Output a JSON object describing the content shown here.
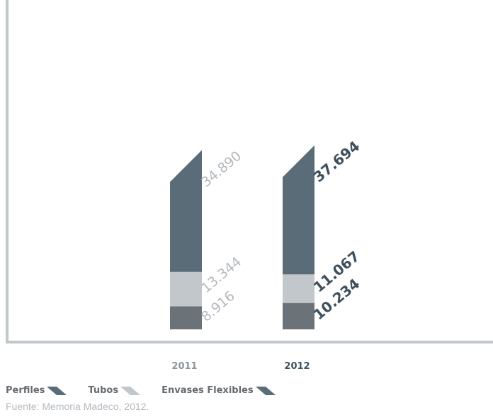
{
  "chart_data": {
    "type": "bar",
    "stacked": true,
    "categories": [
      "2011",
      "2012"
    ],
    "series": [
      {
        "name": "Envases Flexibles",
        "values": [
          8.916,
          10.234
        ],
        "color": "#6b7378"
      },
      {
        "name": "Tubos",
        "values": [
          13.344,
          11.067
        ],
        "color": "#c2c7cb"
      },
      {
        "name": "Perfiles",
        "values": [
          34.89,
          37.694
        ],
        "color": "#5a6c77"
      }
    ],
    "value_labels": [
      [
        "8.916",
        "13.344",
        "34.890"
      ],
      [
        "10.234",
        "11.067",
        "37.694"
      ]
    ],
    "label_colors": [
      "#b3b9be",
      "#3d4f5b"
    ],
    "title": "",
    "xlabel": "",
    "ylabel": "",
    "ylim": [
      0,
      70
    ],
    "grid": false,
    "legend_position": "bottom-left"
  },
  "legend": {
    "items": [
      {
        "label": "Perfiles",
        "icon": "dark-slanted-swatch",
        "color": "#5a6c77"
      },
      {
        "label": "Tubos",
        "icon": "light-slanted-swatch",
        "color": "#c2c7cb"
      },
      {
        "label": "Envases Flexibles",
        "icon": "dark-slanted-swatch",
        "color": "#5a6c77"
      }
    ]
  },
  "source": "Fuente: Memoria Madeco, 2012."
}
